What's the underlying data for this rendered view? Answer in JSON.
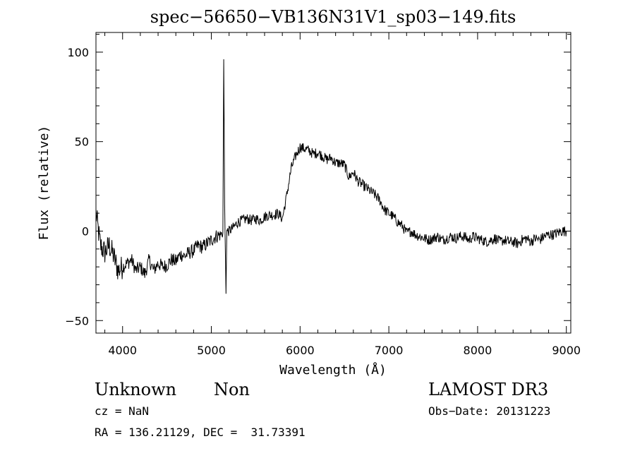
{
  "chart_data": {
    "type": "line",
    "title": "spec−56650−VB136N31V1_sp03−149.fits",
    "xlabel": "Wavelength (Å)",
    "ylabel": "Flux (relative)",
    "xlim": [
      3700,
      9050
    ],
    "ylim": [
      -57,
      111
    ],
    "xticks": [
      4000,
      5000,
      6000,
      7000,
      8000,
      9000
    ],
    "yticks": [
      -50,
      0,
      50,
      100
    ],
    "ytick_labels": [
      "−50",
      "0",
      "50",
      "100"
    ],
    "grid": false,
    "series": [
      {
        "x": [
          3700,
          3750,
          3800,
          3850,
          3900,
          3950,
          4000,
          4050,
          4100,
          4150,
          4200,
          4250,
          4300,
          4350,
          4400,
          4450,
          4500,
          4550,
          4600,
          4650,
          4700,
          4750,
          4800,
          4850,
          4900,
          4950,
          5000,
          5050,
          5100,
          5130,
          5140,
          5150,
          5165,
          5175,
          5200,
          5250,
          5300,
          5350,
          5400,
          5450,
          5500,
          5550,
          5600,
          5650,
          5700,
          5750,
          5800,
          5850,
          5900,
          5950,
          6000,
          6050,
          6100,
          6150,
          6200,
          6250,
          6300,
          6350,
          6400,
          6450,
          6500,
          6550,
          6600,
          6650,
          6700,
          6750,
          6800,
          6850,
          6900,
          6950,
          7000,
          7050,
          7100,
          7150,
          7200,
          7250,
          7300,
          7350,
          7400,
          7450,
          7500,
          7550,
          7600,
          7650,
          7700,
          7750,
          7800,
          7850,
          7900,
          7950,
          8000,
          8050,
          8100,
          8150,
          8200,
          8250,
          8300,
          8350,
          8400,
          8450,
          8500,
          8550,
          8600,
          8650,
          8700,
          8750,
          8800,
          8850,
          8900,
          8950,
          9000
        ],
        "y": [
          10,
          -8,
          -12,
          -8,
          -14,
          -22,
          -20,
          -18,
          -16,
          -22,
          -20,
          -24,
          -16,
          -22,
          -18,
          -20,
          -19,
          -16,
          -17,
          -13,
          -14,
          -12,
          -11,
          -8,
          -9,
          -7,
          -5,
          -3,
          -2,
          -1,
          96,
          15,
          -35,
          0,
          0,
          2,
          5,
          6,
          7,
          6,
          7,
          6,
          8,
          9,
          9,
          10,
          7,
          20,
          35,
          42,
          47,
          46,
          45,
          43,
          44,
          42,
          40,
          41,
          38,
          38,
          37,
          30,
          33,
          28,
          26,
          24,
          22,
          20,
          17,
          12,
          10,
          8,
          5,
          3,
          -1,
          0,
          -2,
          -3,
          -4,
          -5,
          -4,
          -3,
          -5,
          -4,
          -3,
          -4,
          -3,
          -3,
          -5,
          -3,
          -4,
          -5,
          -6,
          -5,
          -4,
          -6,
          -5,
          -6,
          -6,
          -7,
          -5,
          -4,
          -6,
          -4,
          -5,
          -3,
          -2,
          -2,
          -1,
          0,
          0
        ]
      }
    ]
  },
  "info": {
    "classification": "Unknown",
    "subclass": "Non",
    "survey": "LAMOST DR3",
    "cz": "cz = NaN",
    "obs_date": "Obs−Date: 20131223",
    "coords": "RA = 136.21129, DEC =  31.73391"
  }
}
